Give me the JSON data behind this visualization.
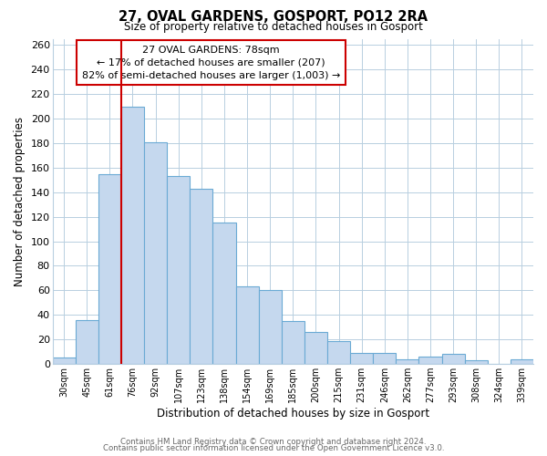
{
  "title": "27, OVAL GARDENS, GOSPORT, PO12 2RA",
  "subtitle": "Size of property relative to detached houses in Gosport",
  "xlabel": "Distribution of detached houses by size in Gosport",
  "ylabel": "Number of detached properties",
  "bar_labels": [
    "30sqm",
    "45sqm",
    "61sqm",
    "76sqm",
    "92sqm",
    "107sqm",
    "123sqm",
    "138sqm",
    "154sqm",
    "169sqm",
    "185sqm",
    "200sqm",
    "215sqm",
    "231sqm",
    "246sqm",
    "262sqm",
    "277sqm",
    "293sqm",
    "308sqm",
    "324sqm",
    "339sqm"
  ],
  "bar_values": [
    5,
    36,
    155,
    210,
    181,
    153,
    143,
    115,
    63,
    60,
    35,
    26,
    19,
    9,
    9,
    4,
    6,
    8,
    3,
    0,
    4
  ],
  "bar_color": "#c5d8ee",
  "bar_edge_color": "#6aaad4",
  "highlight_bar_index": 3,
  "highlight_line_color": "#cc0000",
  "annotation_title": "27 OVAL GARDENS: 78sqm",
  "annotation_line1": "← 17% of detached houses are smaller (207)",
  "annotation_line2": "82% of semi-detached houses are larger (1,003) →",
  "annotation_box_color": "#ffffff",
  "annotation_box_edge": "#cc0000",
  "footer1": "Contains HM Land Registry data © Crown copyright and database right 2024.",
  "footer2": "Contains public sector information licensed under the Open Government Licence v3.0.",
  "ylim": [
    0,
    265
  ],
  "yticks": [
    0,
    20,
    40,
    60,
    80,
    100,
    120,
    140,
    160,
    180,
    200,
    220,
    240,
    260
  ],
  "bg_color": "#ffffff",
  "grid_color": "#b8cfe0"
}
